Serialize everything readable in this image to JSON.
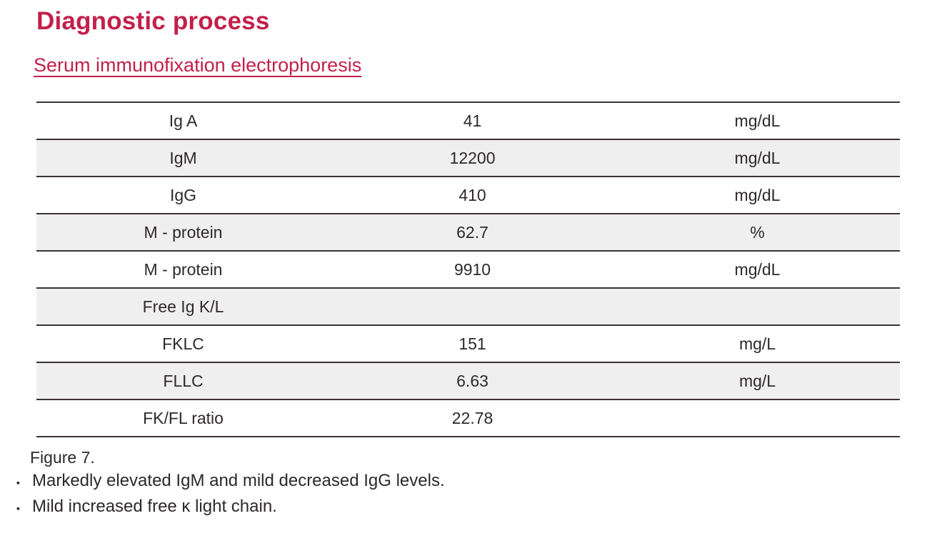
{
  "page": {
    "title": "Diagnostic process",
    "subtitle": "Serum immunofixation electrophoresis"
  },
  "table": {
    "rows": [
      {
        "label": "Ig A",
        "value": "41",
        "unit": "mg/dL",
        "value_color": "blue",
        "shaded": false
      },
      {
        "label": "IgM",
        "value": "12200",
        "unit": "mg/dL",
        "value_color": "red",
        "shaded": true
      },
      {
        "label": "IgG",
        "value": "410",
        "unit": "mg/dL",
        "value_color": "blue",
        "shaded": false
      },
      {
        "label": "M - protein",
        "value": "62.7",
        "unit": "%",
        "value_color": "black",
        "shaded": true
      },
      {
        "label": "M - protein",
        "value": "9910",
        "unit": "mg/dL",
        "value_color": "black",
        "shaded": false
      },
      {
        "label": "Free Ig K/L",
        "value": "",
        "unit": "",
        "value_color": "black",
        "shaded": true
      },
      {
        "label": "FKLC",
        "value": "151",
        "unit": "mg/L",
        "value_color": "red",
        "shaded": false
      },
      {
        "label": "FLLC",
        "value": "6.63",
        "unit": "mg/L",
        "value_color": "blue",
        "shaded": true
      },
      {
        "label": "FK/FL ratio",
        "value": "22.78",
        "unit": "",
        "value_color": "black",
        "shaded": false
      }
    ]
  },
  "caption": {
    "figure_label": "Figure 7.",
    "bullet_glyph": "▪",
    "bullets": [
      "Markedly elevated IgM and mild decreased IgG levels.",
      "Mild increased free κ light chain."
    ]
  },
  "colors": {
    "accent_red": "#c2204a",
    "value_blue": "#1b76be",
    "value_red": "#c2204a",
    "row_shade": "#efefef",
    "line": "#3a3236",
    "text": "#2e282b"
  }
}
